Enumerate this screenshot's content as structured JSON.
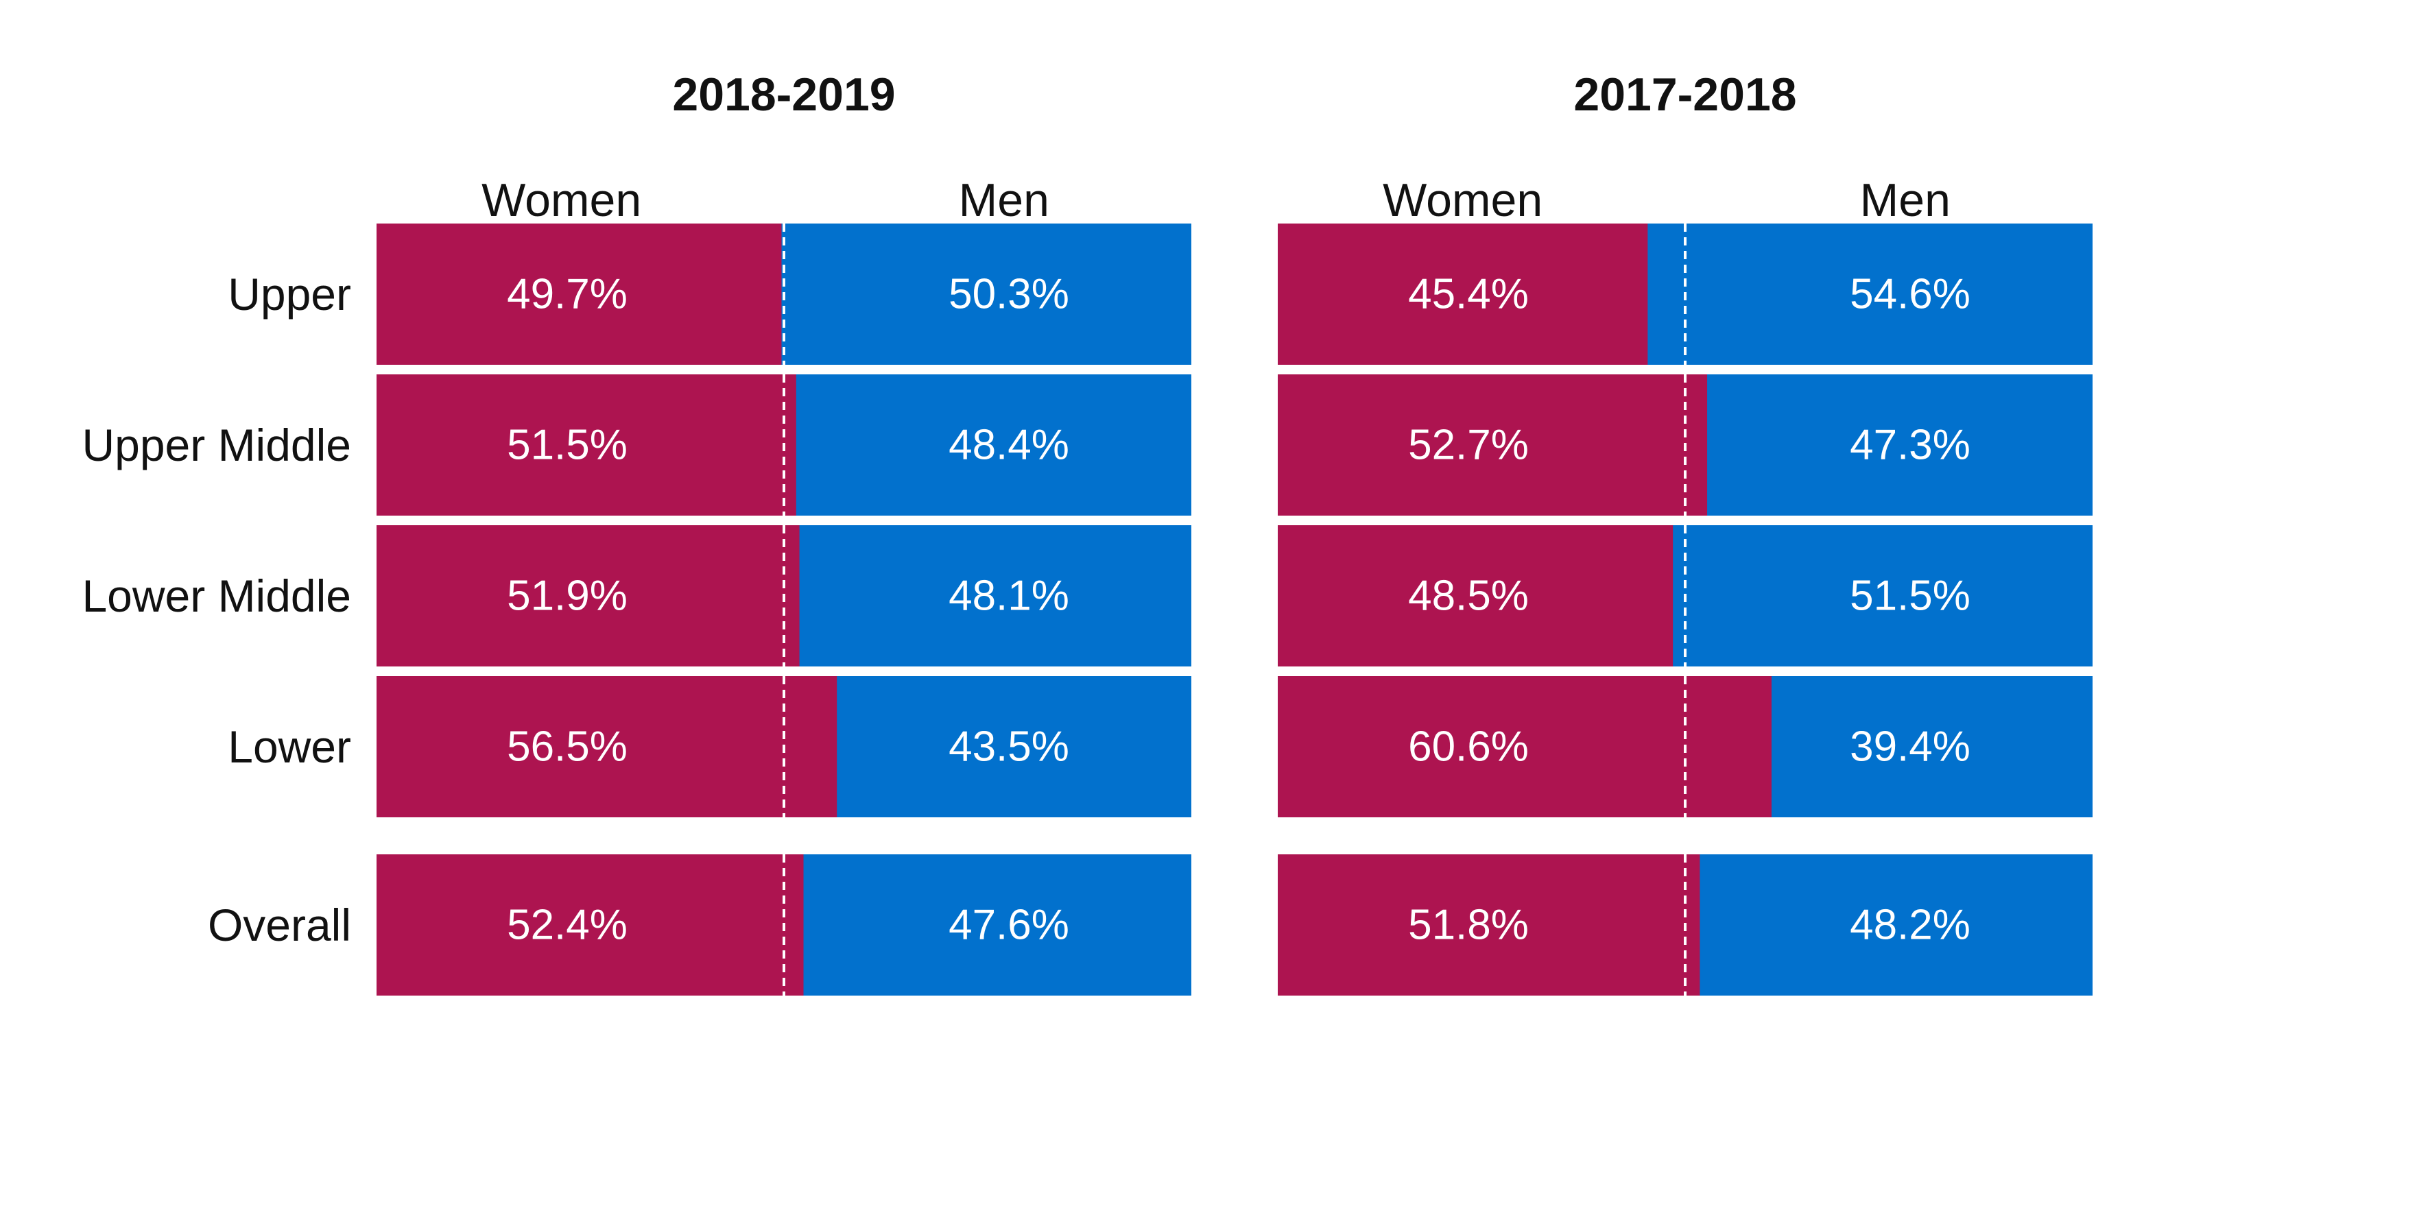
{
  "colors": {
    "women": "#AD1450",
    "men": "#0271CD",
    "divider": "#ffffff",
    "text": "#111111"
  },
  "row_labels": [
    "Upper",
    "Upper Middle",
    "Lower Middle",
    "Lower",
    "Overall"
  ],
  "chart_data": [
    {
      "type": "bar",
      "stacked": true,
      "orientation": "horizontal",
      "title": "2018-2019",
      "column_headers": [
        "Women",
        "Men"
      ],
      "categories": [
        "Upper",
        "Upper Middle",
        "Lower Middle",
        "Lower",
        "Overall"
      ],
      "xlim": [
        0,
        100
      ],
      "reference_line": 50,
      "series": [
        {
          "name": "Women",
          "values": [
            49.7,
            51.5,
            51.9,
            56.5,
            52.4
          ],
          "labels": [
            "49.7%",
            "51.5%",
            "51.9%",
            "56.5%",
            "52.4%"
          ]
        },
        {
          "name": "Men",
          "values": [
            50.3,
            48.4,
            48.1,
            43.5,
            47.6
          ],
          "labels": [
            "50.3%",
            "48.4%",
            "48.1%",
            "43.5%",
            "47.6%"
          ]
        }
      ]
    },
    {
      "type": "bar",
      "stacked": true,
      "orientation": "horizontal",
      "title": "2017-2018",
      "column_headers": [
        "Women",
        "Men"
      ],
      "categories": [
        "Upper",
        "Upper Middle",
        "Lower Middle",
        "Lower",
        "Overall"
      ],
      "xlim": [
        0,
        100
      ],
      "reference_line": 50,
      "series": [
        {
          "name": "Women",
          "values": [
            45.4,
            52.7,
            48.5,
            60.6,
            51.8
          ],
          "labels": [
            "45.4%",
            "52.7%",
            "48.5%",
            "60.6%",
            "51.8%"
          ]
        },
        {
          "name": "Men",
          "values": [
            54.6,
            47.3,
            51.5,
            39.4,
            48.2
          ],
          "labels": [
            "54.6%",
            "47.3%",
            "51.5%",
            "39.4%",
            "48.2%"
          ]
        }
      ]
    }
  ]
}
